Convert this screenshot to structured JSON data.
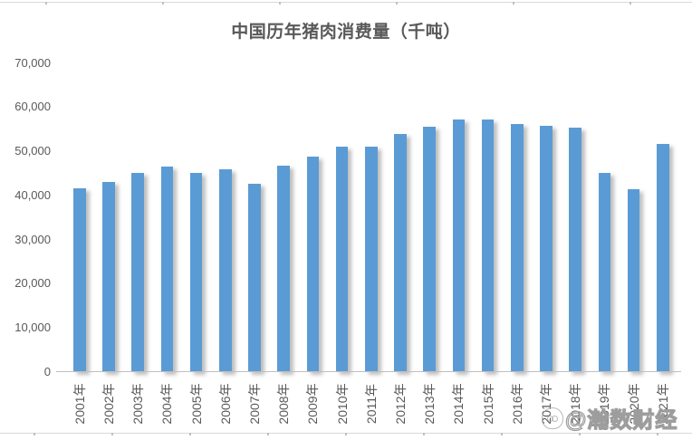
{
  "chart_data": {
    "type": "bar",
    "title": "中国历年猪肉消费量（千吨）",
    "categories": [
      "2001年",
      "2002年",
      "2003年",
      "2004年",
      "2005年",
      "2006年",
      "2007年",
      "2008年",
      "2009年",
      "2010年",
      "2011年",
      "2012年",
      "2013年",
      "2014年",
      "2015年",
      "2016年",
      "2017年",
      "2018年",
      "2019年",
      "2020年",
      "2021年"
    ],
    "values": [
      41700,
      43100,
      45100,
      46500,
      45100,
      46000,
      42700,
      46700,
      48800,
      51100,
      51000,
      53900,
      55600,
      57200,
      57200,
      56200,
      55800,
      55400,
      45000,
      41500,
      51700
    ],
    "xlabel": "",
    "ylabel": "",
    "ylim": [
      0,
      70000
    ],
    "ytick_step": 10000,
    "ytick_labels": [
      "0",
      "10,000",
      "20,000",
      "30,000",
      "40,000",
      "50,000",
      "60,000",
      "70,000"
    ],
    "grid": false,
    "legend": "none",
    "bar_color": "#5b9bd5",
    "title_color": "#595959",
    "axis_label_color": "#595959",
    "axis_line_color": "#bfbfbf"
  },
  "watermark": {
    "text": "@瀚数财经"
  }
}
